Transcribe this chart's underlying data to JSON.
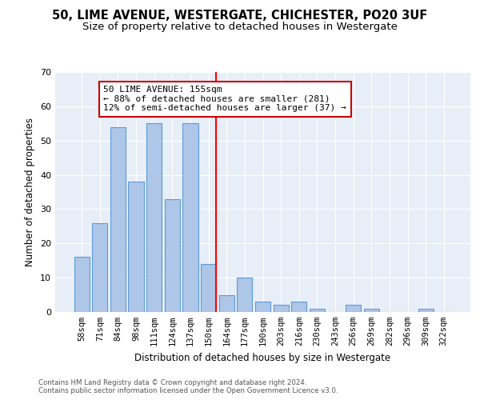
{
  "title1": "50, LIME AVENUE, WESTERGATE, CHICHESTER, PO20 3UF",
  "title2": "Size of property relative to detached houses in Westergate",
  "xlabel": "Distribution of detached houses by size in Westergate",
  "ylabel": "Number of detached properties",
  "categories": [
    "58sqm",
    "71sqm",
    "84sqm",
    "98sqm",
    "111sqm",
    "124sqm",
    "137sqm",
    "150sqm",
    "164sqm",
    "177sqm",
    "190sqm",
    "203sqm",
    "216sqm",
    "230sqm",
    "243sqm",
    "256sqm",
    "269sqm",
    "282sqm",
    "296sqm",
    "309sqm",
    "322sqm"
  ],
  "values": [
    16,
    26,
    54,
    38,
    55,
    33,
    55,
    14,
    5,
    10,
    3,
    2,
    3,
    1,
    0,
    2,
    1,
    0,
    0,
    1,
    0
  ],
  "bar_color": "#aec6e8",
  "bar_edge_color": "#5b9bd5",
  "highlight_index": 7,
  "annotation_text": "50 LIME AVENUE: 155sqm\n← 88% of detached houses are smaller (281)\n12% of semi-detached houses are larger (37) →",
  "footer1": "Contains HM Land Registry data © Crown copyright and database right 2024.",
  "footer2": "Contains public sector information licensed under the Open Government Licence v3.0.",
  "ylim": [
    0,
    70
  ],
  "yticks": [
    0,
    10,
    20,
    30,
    40,
    50,
    60,
    70
  ],
  "bg_color": "#e8eef7",
  "grid_color": "#ffffff",
  "title1_fontsize": 10.5,
  "title2_fontsize": 9.5,
  "annotation_box_color": "#ffffff",
  "annotation_box_edge": "#cc0000",
  "annotation_fontsize": 8,
  "bar_linewidth": 0.8,
  "ylabel_fontsize": 8.5,
  "xlabel_fontsize": 8.5,
  "tick_fontsize": 7.5,
  "ytick_fontsize": 8,
  "footer_fontsize": 6.2,
  "footer_color": "#555555"
}
